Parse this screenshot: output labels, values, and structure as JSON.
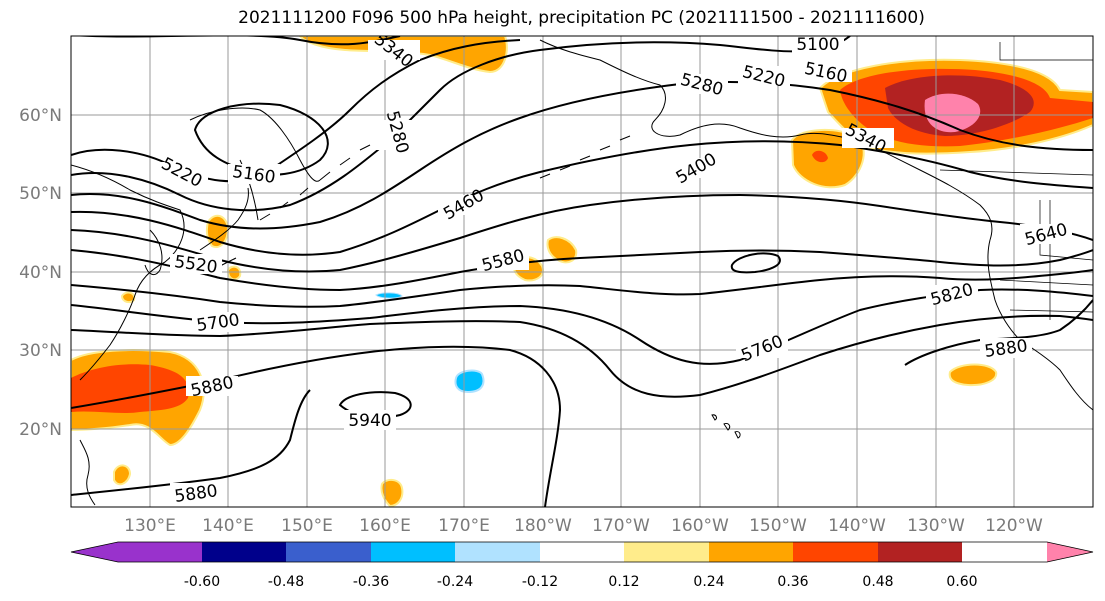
{
  "title": "2021111200 F096 500 hPa height, precipitation PC (2021111500 - 2021111600)",
  "lat_labels": [
    "60°N",
    "50°N",
    "40°N",
    "30°N",
    "20°N"
  ],
  "lon_labels": [
    "130°E",
    "140°E",
    "150°E",
    "160°E",
    "170°E",
    "180°W",
    "170°W",
    "160°W",
    "150°W",
    "140°W",
    "130°W",
    "120°W"
  ],
  "colorbar": {
    "colors": [
      "#9932cc",
      "#00008b",
      "#3a5fcd",
      "#00bfff",
      "#b0e2ff",
      "#ffffff",
      "#ffec8b",
      "#ffa500",
      "#ff4500",
      "#b22222",
      "#ff82ab"
    ],
    "labels": [
      "-0.60",
      "-0.48",
      "-0.36",
      "-0.24",
      "-0.12",
      "0.12",
      "0.24",
      "0.36",
      "0.48",
      "0.60"
    ],
    "extend": "both"
  },
  "contour_labels": [
    "5100",
    "5160",
    "5220",
    "5280",
    "5340",
    "5400",
    "5460",
    "5520",
    "5580",
    "5640",
    "5700",
    "5760",
    "5820",
    "5880",
    "5940",
    "5340",
    "5280",
    "5160",
    "5220",
    "5880",
    "5880"
  ],
  "precip_colors": {
    "light_positive": "#ffec8b",
    "positive": "#ffa500",
    "strong_positive": "#ff4500",
    "very_strong_positive": "#b22222",
    "extreme_positive": "#ff82ab",
    "negative": "#00bfff",
    "light_negative": "#b0e2ff"
  }
}
